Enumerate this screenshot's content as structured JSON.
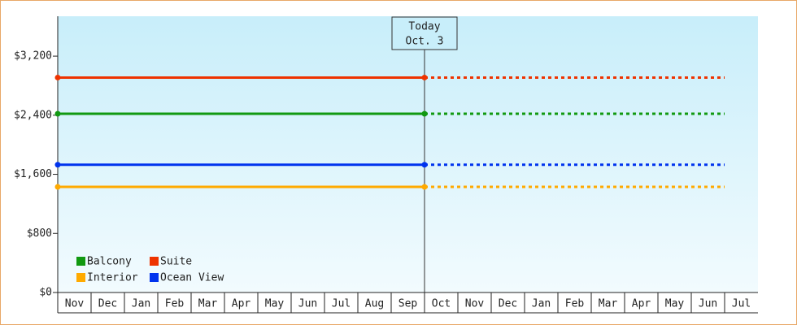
{
  "chart_data": {
    "type": "line",
    "categories": [
      "Nov",
      "Dec",
      "Jan",
      "Feb",
      "Mar",
      "Apr",
      "May",
      "Jun",
      "Jul",
      "Aug",
      "Sep",
      "Oct",
      "Nov",
      "Dec",
      "Jan",
      "Feb",
      "Mar",
      "Apr",
      "May",
      "Jun",
      "Jul"
    ],
    "series": [
      {
        "name": "Balcony",
        "color": "#119911",
        "values": [
          2420,
          2420,
          2420,
          2420,
          2420,
          2420,
          2420,
          2420,
          2420,
          2420,
          2420,
          2420,
          2420,
          2420,
          2420,
          2420,
          2420,
          2420,
          2420,
          2420,
          2420
        ]
      },
      {
        "name": "Suite",
        "color": "#ee3300",
        "values": [
          2910,
          2910,
          2910,
          2910,
          2910,
          2910,
          2910,
          2910,
          2910,
          2910,
          2910,
          2910,
          2910,
          2910,
          2910,
          2910,
          2910,
          2910,
          2910,
          2910,
          2910
        ]
      },
      {
        "name": "Interior",
        "color": "#ffaa00",
        "values": [
          1430,
          1430,
          1430,
          1430,
          1430,
          1430,
          1430,
          1430,
          1430,
          1430,
          1430,
          1430,
          1430,
          1430,
          1430,
          1430,
          1430,
          1430,
          1430,
          1430,
          1430
        ]
      },
      {
        "name": "Ocean View",
        "color": "#0033ee",
        "values": [
          1730,
          1730,
          1730,
          1730,
          1730,
          1730,
          1730,
          1730,
          1730,
          1730,
          1730,
          1730,
          1730,
          1730,
          1730,
          1730,
          1730,
          1730,
          1730,
          1730,
          1730
        ]
      }
    ],
    "ylim": [
      0,
      3740
    ],
    "yticks": [
      {
        "value": 0,
        "label": "$0"
      },
      {
        "value": 800,
        "label": "$800"
      },
      {
        "value": 1600,
        "label": "$1,600"
      },
      {
        "value": 2400,
        "label": "$2,400"
      },
      {
        "value": 3200,
        "label": "$3,200"
      }
    ],
    "today": {
      "title": "Today",
      "date": "Oct. 3",
      "index": 11
    }
  }
}
